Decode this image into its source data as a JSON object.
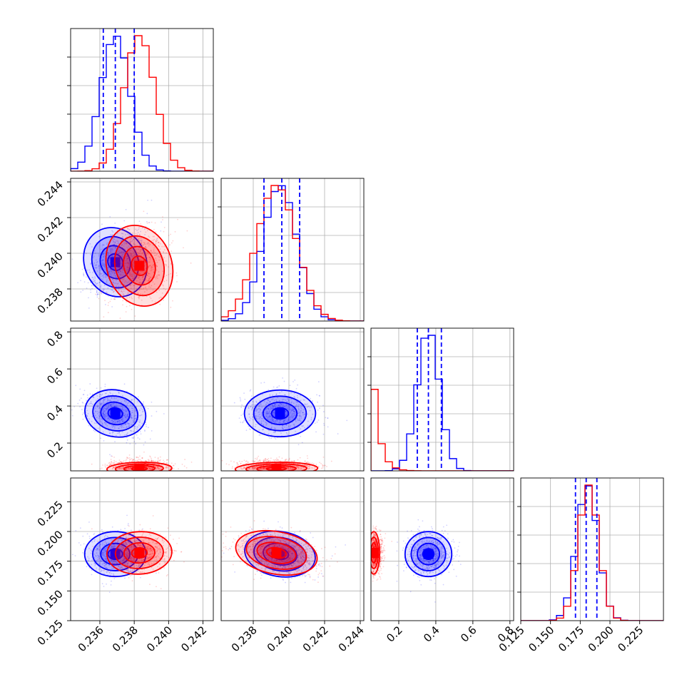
{
  "chart_data": {
    "type": "corner",
    "grid": true,
    "colors": {
      "blue": "#0000ff",
      "red": "#ff0000",
      "gridline": "#b0b0b0"
    },
    "parameters": [
      {
        "index": 0,
        "range": [
          0.2343,
          0.2426
        ],
        "ticks": [
          "0.236",
          "0.238",
          "0.240",
          "0.242"
        ],
        "tick_values": [
          0.236,
          0.238,
          0.24,
          0.242
        ],
        "x_axis_printed": true,
        "y_axis_printed": false
      },
      {
        "index": 1,
        "range": [
          0.2362,
          0.2442
        ],
        "ticks": [
          "0.238",
          "0.240",
          "0.242",
          "0.244"
        ],
        "tick_values": [
          0.238,
          0.24,
          0.242,
          0.244
        ],
        "x_axis_printed": true,
        "y_axis_printed": true
      },
      {
        "index": 2,
        "range": [
          0.05,
          0.82
        ],
        "ticks": [
          "0.2",
          "0.4",
          "0.6",
          "0.8"
        ],
        "tick_values": [
          0.2,
          0.4,
          0.6,
          0.8
        ],
        "x_axis_printed": true,
        "y_axis_printed": true
      },
      {
        "index": 3,
        "range": [
          0.125,
          0.245
        ],
        "ticks": [
          "0.125",
          "0.150",
          "0.175",
          "0.200",
          "0.225"
        ],
        "tick_values": [
          0.125,
          0.15,
          0.175,
          0.2,
          0.225
        ],
        "x_axis_printed": true,
        "y_axis_printed": true
      }
    ],
    "series": [
      {
        "color": "#0000ff",
        "means": [
          0.2369,
          0.2395,
          0.36,
          0.181
        ],
        "stds": [
          0.00085,
          0.00095,
          0.06,
          0.009
        ],
        "correlations": [
          [
            0,
            1,
            0.5
          ],
          [
            0,
            2,
            -0.3
          ],
          [
            1,
            2,
            0.0
          ],
          [
            0,
            3,
            0.0
          ],
          [
            1,
            3,
            -0.3
          ],
          [
            2,
            3,
            0.0
          ]
        ],
        "quantile_lines": [
          [
            0.2362,
            0.2369,
            0.238
          ],
          [
            0.2386,
            0.2396,
            0.2406
          ],
          [
            0.3,
            0.36,
            0.43
          ],
          [
            0.171,
            0.18,
            0.189
          ]
        ]
      },
      {
        "color": "#ff0000",
        "means": [
          0.2383,
          0.2393,
          0.07,
          0.182
        ],
        "stds": [
          0.0009,
          0.0011,
          0.03,
          0.0085
        ],
        "correlations": [
          [
            0,
            1,
            0.3
          ],
          [
            0,
            2,
            0.1
          ],
          [
            1,
            2,
            0.1
          ],
          [
            0,
            3,
            0.1
          ],
          [
            1,
            3,
            -0.4
          ],
          [
            2,
            3,
            0.0
          ]
        ]
      }
    ]
  }
}
